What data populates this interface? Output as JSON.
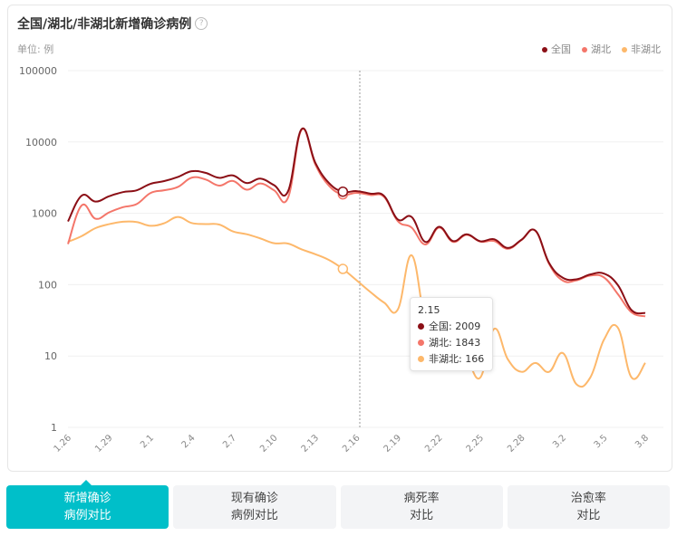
{
  "header": {
    "title": "全国/湖北/非湖北新增确诊病例",
    "help_icon": "question-circle-icon",
    "unit": "单位: 例"
  },
  "legend": [
    {
      "label": "全国",
      "color": "#8b0f16"
    },
    {
      "label": "湖北",
      "color": "#f4766a"
    },
    {
      "label": "非湖北",
      "color": "#fdb86b"
    }
  ],
  "tooltip": {
    "date": "2.15",
    "rows": [
      {
        "label": "全国: 2009",
        "color": "#8b0f16"
      },
      {
        "label": "湖北: 1843",
        "color": "#f4766a"
      },
      {
        "label": "非湖北: 166",
        "color": "#fdb86b"
      }
    ]
  },
  "tabs": [
    {
      "line1": "新增确诊",
      "line2": "病例对比",
      "active": true
    },
    {
      "line1": "现有确诊",
      "line2": "病例对比"
    },
    {
      "line1": "病死率",
      "line2": "对比"
    },
    {
      "line1": "治愈率",
      "line2": "对比"
    }
  ],
  "chart_data": {
    "type": "line",
    "yscale": "log",
    "ylim": [
      1,
      100000
    ],
    "yticks": [
      "1",
      "10",
      "100",
      "1000",
      "10000",
      "100000"
    ],
    "x": [
      "1.26",
      "1.27",
      "1.28",
      "1.29",
      "1.30",
      "1.31",
      "2.1",
      "2.2",
      "2.3",
      "2.4",
      "2.5",
      "2.6",
      "2.7",
      "2.8",
      "2.9",
      "2.10",
      "2.11",
      "2.12",
      "2.13",
      "2.14",
      "2.15",
      "2.16",
      "2.17",
      "2.18",
      "2.19",
      "2.20",
      "2.21",
      "2.22",
      "2.23",
      "2.24",
      "2.25",
      "2.26",
      "2.27",
      "2.28",
      "2.29",
      "3.1",
      "3.2",
      "3.3",
      "3.4",
      "3.5",
      "3.6",
      "3.7",
      "3.8"
    ],
    "xtick_labels": [
      "1.26",
      "1.29",
      "2.1",
      "2.4",
      "2.7",
      "2.10",
      "2.13",
      "2.16",
      "2.19",
      "2.22",
      "2.25",
      "2.28",
      "3.2",
      "3.5",
      "3.8"
    ],
    "highlight": "2.15",
    "series": [
      {
        "name": "全国",
        "color": "#8b0f16",
        "values": [
          769,
          1771,
          1459,
          1737,
          1982,
          2102,
          2590,
          2829,
          3235,
          3887,
          3694,
          3143,
          3399,
          2656,
          3062,
          2478,
          2015,
          15152,
          5090,
          2641,
          2009,
          2048,
          1886,
          1749,
          820,
          889,
          397,
          648,
          409,
          508,
          406,
          433,
          327,
          427,
          573,
          202,
          125,
          119,
          139,
          143,
          99,
          44,
          40
        ]
      },
      {
        "name": "湖北",
        "color": "#f4766a",
        "values": [
          371,
          1291,
          840,
          1032,
          1220,
          1347,
          1921,
          2103,
          2345,
          3156,
          2987,
          2447,
          2841,
          2147,
          2618,
          2097,
          1638,
          14840,
          4823,
          2420,
          1843,
          1933,
          1807,
          1693,
          775,
          631,
          366,
          630,
          398,
          499,
          401,
          409,
          318,
          423,
          570,
          196,
          114,
          115,
          134,
          126,
          74,
          41,
          36
        ]
      },
      {
        "name": "非湖北",
        "color": "#fdb86b",
        "values": [
          398,
          480,
          619,
          705,
          762,
          755,
          669,
          726,
          890,
          731,
          707,
          696,
          558,
          509,
          444,
          381,
          377,
          312,
          267,
          221,
          166,
          115,
          79,
          56,
          45,
          258,
          31,
          18,
          11,
          9,
          5,
          24,
          9,
          6,
          8,
          6,
          11,
          4,
          5,
          17,
          25,
          5,
          8
        ]
      }
    ]
  }
}
